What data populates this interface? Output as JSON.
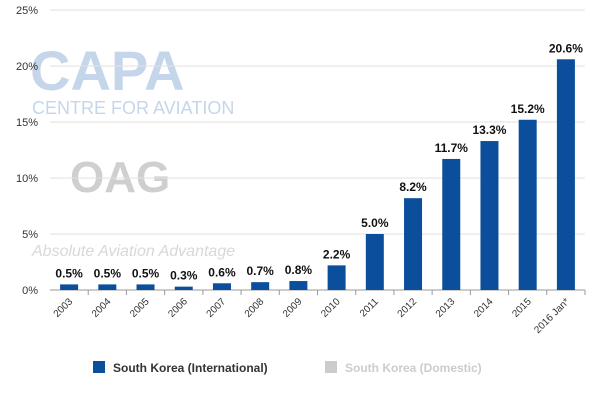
{
  "chart_data": {
    "type": "bar",
    "categories": [
      "2003",
      "2004",
      "2005",
      "2006",
      "2007",
      "2008",
      "2009",
      "2010",
      "2011",
      "2012",
      "2013",
      "2014",
      "2015",
      "2016 Jan*"
    ],
    "series": [
      {
        "name": "South Korea (International)",
        "color": "#0b4f9c",
        "values": [
          0.5,
          0.5,
          0.5,
          0.3,
          0.6,
          0.7,
          0.8,
          2.2,
          5.0,
          8.2,
          11.7,
          13.3,
          15.2,
          20.6
        ],
        "value_labels": [
          "0.5%",
          "0.5%",
          "0.5%",
          "0.3%",
          "0.6%",
          "0.7%",
          "0.8%",
          "2.2%",
          "5.0%",
          "8.2%",
          "11.7%",
          "13.3%",
          "15.2%",
          "20.6%"
        ]
      },
      {
        "name": "South Korea (Domestic)",
        "color": "#cccccc",
        "visible": false,
        "values": [
          null,
          null,
          null,
          null,
          null,
          null,
          null,
          null,
          null,
          null,
          null,
          null,
          null,
          null
        ]
      }
    ],
    "ylim": [
      0,
      25
    ],
    "yticks": [
      {
        "value": 0,
        "label": "0%"
      },
      {
        "value": 5,
        "label": "5%"
      },
      {
        "value": 10,
        "label": "10%"
      },
      {
        "value": 15,
        "label": "15%"
      },
      {
        "value": 20,
        "label": "20%"
      },
      {
        "value": 25,
        "label": "25%"
      }
    ],
    "grid": true,
    "legend": "bottom",
    "watermarks": [
      "CAPA",
      "CENTRE FOR AVIATION",
      "OAG",
      "Absolute Aviation Advantage"
    ]
  }
}
